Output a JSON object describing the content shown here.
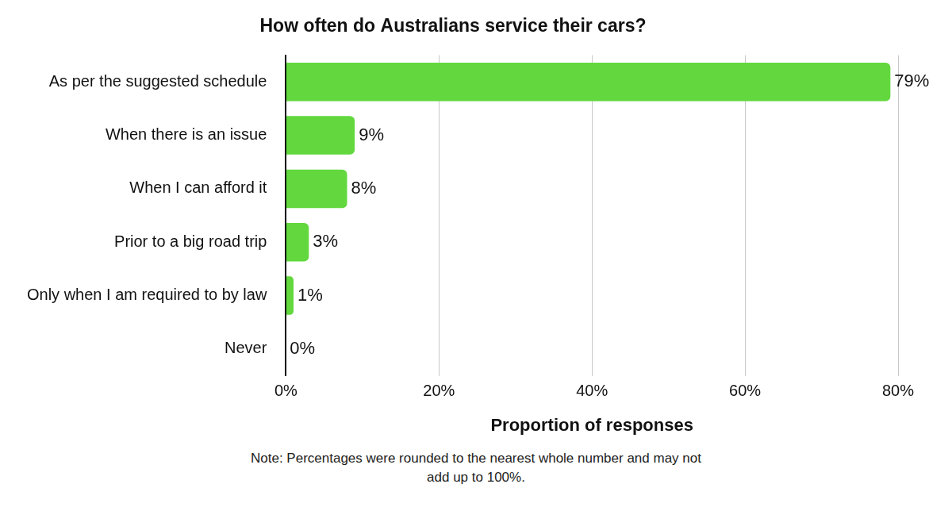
{
  "chart_data": {
    "type": "bar",
    "orientation": "horizontal",
    "title": "How often do Australians service their cars?",
    "categories": [
      "As per the suggested schedule",
      "When there is an issue",
      "When I can afford it",
      "Prior to a big road trip",
      "Only when I am required to by law",
      "Never"
    ],
    "values": [
      79,
      9,
      8,
      3,
      1,
      0
    ],
    "value_labels": [
      "79%",
      "9%",
      "8%",
      "3%",
      "1%",
      "0%"
    ],
    "data_labels": true,
    "color": "#62d83e",
    "x_label": "Proportion of responses",
    "xlim": [
      0,
      80
    ],
    "xticks": [
      {
        "value": 0,
        "label": "0%"
      },
      {
        "value": 20,
        "label": "20%"
      },
      {
        "value": 40,
        "label": "40%"
      },
      {
        "value": 60,
        "label": "60%"
      },
      {
        "value": 80,
        "label": "80%"
      }
    ],
    "grid": true,
    "annotations": [
      "Note: Percentages were rounded to the nearest whole number and may not add up to 100%."
    ]
  }
}
